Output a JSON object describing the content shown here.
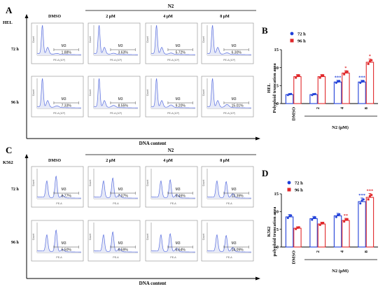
{
  "panels": {
    "A": {
      "letter": "A",
      "cell_line": "HEL",
      "treatment_group": "N2",
      "columns": [
        "DMSO",
        "2 μM",
        "4 μM",
        "8 μM"
      ],
      "rows": [
        "72 h",
        "96 h"
      ],
      "xlabel": "DNA content",
      "hist_xlabel": "PE-A (10³)",
      "hist_ylabel": "Count",
      "gate": "M3",
      "values": [
        [
          "1.88%",
          "3.63%",
          "5.72%",
          "6.30%"
        ],
        [
          "7.33%",
          "8.55%",
          "9.20%",
          "15.01%"
        ]
      ]
    },
    "B": {
      "letter": "B",
      "series_name_1": "72 h",
      "series_name_2": "96 h",
      "ylabel_line1": "HEL",
      "ylabel_line2": "Polyploid truncation area",
      "xlabel": "N2 (μM)"
    },
    "C": {
      "letter": "C",
      "cell_line": "K562",
      "treatment_group": "N2",
      "columns": [
        "DMSO",
        "2 μM",
        "4 μM",
        "8 μM"
      ],
      "rows": [
        "72 h",
        "96 h"
      ],
      "xlabel": "DNA content",
      "hist_xlabel": "PE-A",
      "hist_ylabel": "Count",
      "gate": "M3",
      "values": [
        [
          "8.77%",
          "7.07%",
          "9.46%",
          "12.39%"
        ],
        [
          "5.50%",
          "6.59%",
          "6.64%",
          "14.09%"
        ]
      ]
    },
    "D": {
      "letter": "D",
      "series_name_1": "72 h",
      "series_name_2": "96 h",
      "ylabel_line1": "K562",
      "ylabel_line2": "polyploid truncation area",
      "xlabel": "N2 (μM)"
    }
  },
  "colors": {
    "series_72h": "#1f3fd8",
    "series_96h": "#e0282b",
    "histogram": "#5a6fe0",
    "histogram_fill": "#e6e9f7"
  },
  "chart_data": [
    {
      "panel": "B",
      "type": "bar",
      "categories": [
        "DMSO",
        "2",
        "4",
        "8"
      ],
      "series": [
        {
          "name": "72 h",
          "values": [
            2.5,
            2.5,
            6.0,
            6.0
          ],
          "significance": [
            "",
            "",
            "***",
            "***"
          ]
        },
        {
          "name": "96 h",
          "values": [
            7.5,
            7.5,
            8.5,
            11.5
          ],
          "significance": [
            "",
            "",
            "*",
            "*"
          ]
        }
      ],
      "ylim": [
        0,
        15
      ],
      "yticks": [
        0,
        5,
        10,
        15
      ],
      "ylabel": "Polyploid truncation area",
      "xlabel": "N2 (μM)",
      "legend_position": "top-left"
    },
    {
      "panel": "D",
      "type": "bar",
      "categories": [
        "DMSO",
        "2",
        "4",
        "8"
      ],
      "series": [
        {
          "name": "72 h",
          "values": [
            8.5,
            8.0,
            8.8,
            12.8
          ],
          "significance": [
            "",
            "",
            "",
            "***"
          ]
        },
        {
          "name": "96 h",
          "values": [
            5.3,
            6.5,
            7.5,
            14.0
          ],
          "significance": [
            "",
            "",
            "**",
            "***"
          ]
        }
      ],
      "ylim": [
        0,
        15
      ],
      "yticks": [
        0,
        5,
        10,
        15
      ],
      "ylabel": "polyploid truncation area",
      "xlabel": "N2 (μM)",
      "legend_position": "top-left"
    }
  ]
}
